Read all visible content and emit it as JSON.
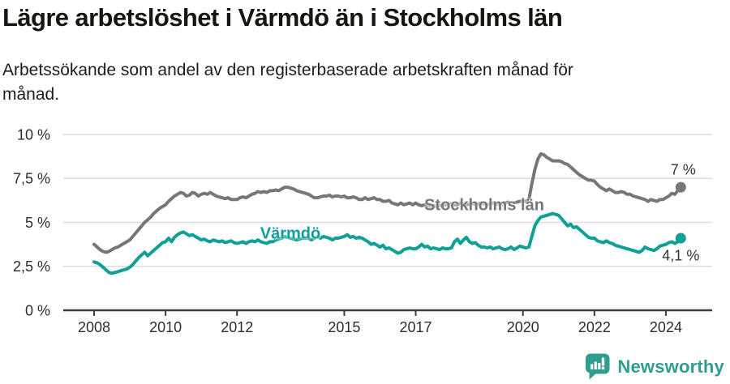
{
  "header": {
    "title": "Lägre arbetslöshet i Värmdö än i Stockholms län",
    "subtitle": "Arbetssökande som andel av den registerbaserade arbetskraften månad för månad."
  },
  "chart_data": {
    "type": "line",
    "title": "Lägre arbetslöshet i Värmdö än i Stockholms län",
    "subtitle": "Arbetssökande som andel av den registerbaserade arbetskraften månad för månad.",
    "x_unit": "month",
    "x_start": "2008-01",
    "x_end": "2024-06",
    "ylim": [
      0,
      10
    ],
    "grid": true,
    "legend_position": "inline-labels",
    "x_ticks": [
      2008,
      2010,
      2012,
      2015,
      2017,
      2020,
      2022,
      2024
    ],
    "y_ticks": [
      {
        "value": 0,
        "label": "0 %"
      },
      {
        "value": 2.5,
        "label": "2,5 %"
      },
      {
        "value": 5,
        "label": "5 %"
      },
      {
        "value": 7.5,
        "label": "7,5 %"
      },
      {
        "value": 10,
        "label": "10 %"
      }
    ],
    "series": [
      {
        "name": "Stockholms län",
        "color": "#7A757B",
        "end_label": "7 %",
        "end_value": 7.0,
        "values": [
          3.75,
          3.6,
          3.45,
          3.35,
          3.3,
          3.35,
          3.45,
          3.55,
          3.6,
          3.7,
          3.8,
          3.9,
          4.0,
          4.2,
          4.4,
          4.6,
          4.8,
          5.0,
          5.15,
          5.3,
          5.5,
          5.65,
          5.8,
          5.9,
          6.0,
          6.2,
          6.35,
          6.5,
          6.6,
          6.7,
          6.65,
          6.5,
          6.55,
          6.7,
          6.65,
          6.5,
          6.6,
          6.65,
          6.6,
          6.7,
          6.6,
          6.5,
          6.45,
          6.4,
          6.35,
          6.4,
          6.3,
          6.3,
          6.3,
          6.4,
          6.45,
          6.4,
          6.5,
          6.6,
          6.65,
          6.75,
          6.7,
          6.75,
          6.7,
          6.8,
          6.8,
          6.85,
          6.8,
          6.9,
          7.0,
          7.0,
          6.95,
          6.9,
          6.8,
          6.75,
          6.7,
          6.65,
          6.6,
          6.5,
          6.4,
          6.4,
          6.45,
          6.5,
          6.5,
          6.55,
          6.45,
          6.5,
          6.5,
          6.45,
          6.5,
          6.4,
          6.4,
          6.45,
          6.4,
          6.3,
          6.3,
          6.4,
          6.3,
          6.35,
          6.4,
          6.3,
          6.3,
          6.2,
          6.2,
          6.25,
          6.1,
          6.05,
          6.0,
          6.1,
          6.0,
          6.05,
          6.1,
          6.0,
          6.1,
          6.0,
          5.95,
          6.0,
          5.95,
          5.9,
          5.95,
          5.9,
          5.95,
          6.0,
          6.0,
          6.05,
          6.05,
          6.0,
          6.0,
          6.1,
          6.05,
          6.0,
          6.05,
          6.1,
          6.0,
          6.05,
          6.1,
          6.05,
          6.0,
          6.05,
          6.1,
          6.05,
          6.0,
          6.05,
          6.1,
          6.15,
          6.1,
          6.1,
          6.15,
          6.2,
          6.2,
          6.2,
          6.3,
          7.2,
          8.0,
          8.6,
          8.9,
          8.85,
          8.7,
          8.6,
          8.5,
          8.5,
          8.5,
          8.45,
          8.35,
          8.3,
          8.15,
          8.0,
          7.85,
          7.7,
          7.6,
          7.5,
          7.4,
          7.4,
          7.35,
          7.15,
          7.0,
          6.9,
          6.8,
          6.9,
          6.8,
          6.7,
          6.7,
          6.75,
          6.7,
          6.6,
          6.6,
          6.5,
          6.45,
          6.4,
          6.35,
          6.3,
          6.2,
          6.3,
          6.25,
          6.2,
          6.3,
          6.3,
          6.4,
          6.5,
          6.65,
          6.6,
          6.8,
          7.0
        ]
      },
      {
        "name": "Värmdö",
        "color": "#11A095",
        "end_label": "4,1 %",
        "end_value": 4.1,
        "values": [
          2.75,
          2.7,
          2.6,
          2.45,
          2.3,
          2.15,
          2.1,
          2.15,
          2.2,
          2.25,
          2.3,
          2.35,
          2.45,
          2.6,
          2.8,
          3.0,
          3.15,
          3.3,
          3.1,
          3.25,
          3.4,
          3.55,
          3.7,
          3.85,
          3.9,
          4.1,
          3.9,
          4.15,
          4.3,
          4.4,
          4.45,
          4.35,
          4.25,
          4.3,
          4.2,
          4.1,
          4.0,
          4.05,
          3.95,
          3.9,
          4.0,
          3.95,
          3.9,
          3.95,
          3.85,
          3.9,
          3.95,
          3.85,
          3.8,
          3.85,
          3.9,
          3.8,
          3.9,
          3.95,
          3.9,
          4.0,
          3.9,
          3.85,
          3.8,
          3.9,
          3.9,
          4.0,
          4.05,
          4.1,
          4.2,
          4.15,
          4.1,
          4.05,
          4.0,
          4.05,
          4.1,
          4.1,
          4.1,
          4.0,
          4.1,
          4.2,
          4.1,
          4.2,
          4.15,
          4.1,
          4.0,
          4.1,
          4.1,
          4.15,
          4.2,
          4.3,
          4.15,
          4.2,
          4.1,
          4.15,
          4.1,
          4.0,
          3.9,
          3.75,
          3.8,
          3.7,
          3.6,
          3.7,
          3.5,
          3.55,
          3.45,
          3.35,
          3.25,
          3.3,
          3.45,
          3.5,
          3.55,
          3.5,
          3.5,
          3.6,
          3.75,
          3.6,
          3.65,
          3.5,
          3.55,
          3.5,
          3.45,
          3.55,
          3.5,
          3.5,
          3.55,
          3.9,
          4.05,
          3.8,
          4.0,
          4.15,
          3.9,
          3.8,
          3.85,
          3.7,
          3.6,
          3.6,
          3.55,
          3.6,
          3.5,
          3.55,
          3.6,
          3.5,
          3.45,
          3.5,
          3.6,
          3.45,
          3.55,
          3.65,
          3.6,
          3.55,
          3.6,
          4.2,
          4.8,
          5.1,
          5.3,
          5.35,
          5.4,
          5.45,
          5.5,
          5.45,
          5.4,
          5.2,
          5.0,
          4.8,
          4.9,
          4.7,
          4.75,
          4.6,
          4.45,
          4.3,
          4.15,
          4.1,
          4.1,
          3.95,
          3.9,
          3.85,
          3.95,
          3.85,
          3.8,
          3.7,
          3.65,
          3.6,
          3.55,
          3.5,
          3.45,
          3.4,
          3.35,
          3.3,
          3.4,
          3.6,
          3.5,
          3.45,
          3.4,
          3.5,
          3.65,
          3.7,
          3.75,
          3.85,
          3.9,
          3.8,
          3.9,
          4.1
        ]
      }
    ]
  },
  "branding": {
    "name": "Newsworthy",
    "color": "#2F9D90"
  }
}
